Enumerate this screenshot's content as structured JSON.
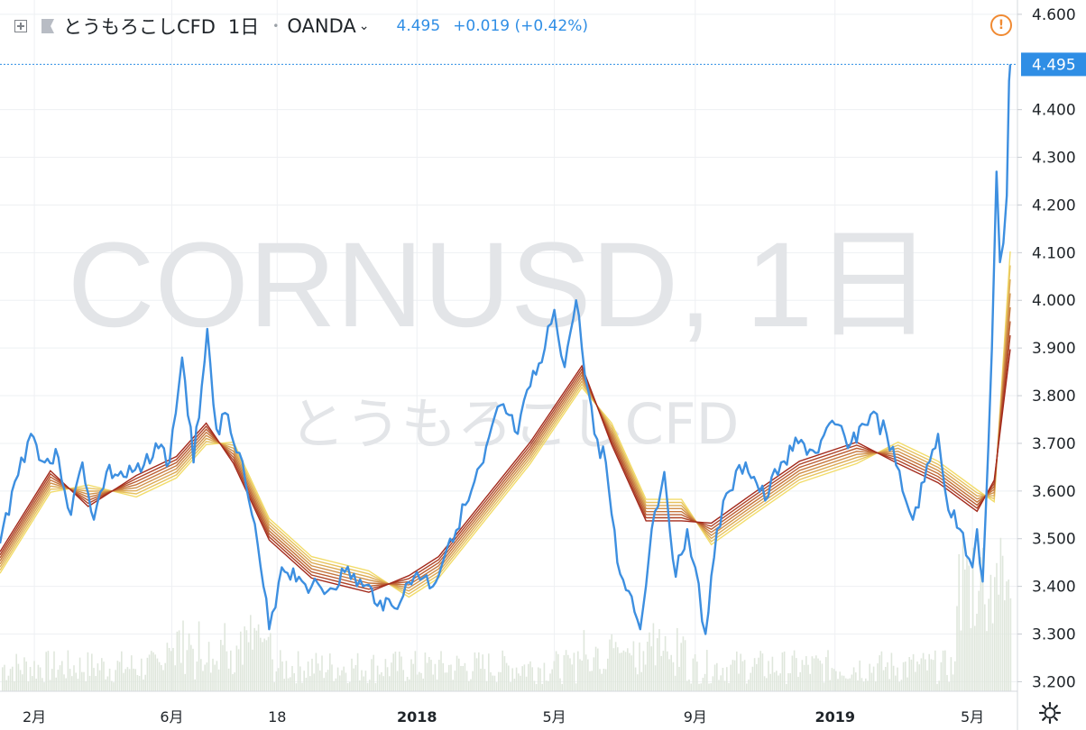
{
  "header": {
    "symbol": "とうもろこしCFD",
    "timeframe": "1日",
    "source": "OANDA",
    "price": "4.495",
    "change": "+0.019 (+0.42%)",
    "add_icon": "plus-square-icon",
    "flag_icon": "flag-icon",
    "dropdown_icon": "chevron-down-icon"
  },
  "watermark": {
    "main": "CORNUSD, 1日",
    "sub": "とうもろこしCFD"
  },
  "alert_icon": "exclamation-circle-icon",
  "settings_icon": "gear-icon",
  "colors": {
    "price_line": "#3d8fe0",
    "last_price_label_bg": "#2f8ee5",
    "ribbon_fast": "#f2dc6a",
    "ribbon_slow": "#a32a1c",
    "volume_bars": "#dfe7dc",
    "alert": "#f08a32"
  },
  "chart_data": {
    "type": "line",
    "y_axis": {
      "ticks": [
        "4.600",
        "4.400",
        "4.300",
        "4.200",
        "4.100",
        "4.000",
        "3.900",
        "3.800",
        "3.700",
        "3.600",
        "3.500",
        "3.400",
        "3.300",
        "3.200"
      ],
      "range": [
        3.18,
        4.63
      ],
      "last_price_label": "4.495"
    },
    "x_axis": {
      "ticks": [
        "2月",
        "6月",
        "18",
        "2018",
        "5月",
        "9月",
        "2019",
        "5月"
      ],
      "bold_ticks": [
        "2018",
        "2019"
      ],
      "range": [
        "2017-01-02",
        "2019-06-03"
      ],
      "tick_dates": [
        "2017-02-01",
        "2017-06-01",
        "2017-09-01",
        "2018-01-01",
        "2018-05-01",
        "2018-09-01",
        "2019-01-01",
        "2019-05-01"
      ]
    },
    "grid": true,
    "price_series": {
      "name": "",
      "points": [
        [
          "2017-01-02",
          3.49
        ],
        [
          "2017-01-15",
          3.62
        ],
        [
          "2017-01-29",
          3.72
        ],
        [
          "2017-02-10",
          3.66
        ],
        [
          "2017-02-22",
          3.67
        ],
        [
          "2017-03-05",
          3.55
        ],
        [
          "2017-03-15",
          3.66
        ],
        [
          "2017-03-25",
          3.54
        ],
        [
          "2017-04-05",
          3.64
        ],
        [
          "2017-04-20",
          3.63
        ],
        [
          "2017-05-05",
          3.64
        ],
        [
          "2017-05-18",
          3.7
        ],
        [
          "2017-05-30",
          3.66
        ],
        [
          "2017-06-10",
          3.88
        ],
        [
          "2017-06-20",
          3.66
        ],
        [
          "2017-07-02",
          3.94
        ],
        [
          "2017-07-10",
          3.73
        ],
        [
          "2017-07-20",
          3.76
        ],
        [
          "2017-07-30",
          3.68
        ],
        [
          "2017-08-10",
          3.55
        ],
        [
          "2017-08-20",
          3.4
        ],
        [
          "2017-08-25",
          3.31
        ],
        [
          "2017-09-05",
          3.44
        ],
        [
          "2017-09-20",
          3.42
        ],
        [
          "2017-10-01",
          3.4
        ],
        [
          "2017-10-15",
          3.39
        ],
        [
          "2017-10-30",
          3.43
        ],
        [
          "2017-11-15",
          3.4
        ],
        [
          "2017-11-30",
          3.37
        ],
        [
          "2017-12-10",
          3.36
        ],
        [
          "2017-12-20",
          3.38
        ],
        [
          "2018-01-01",
          3.43
        ],
        [
          "2018-01-15",
          3.4
        ],
        [
          "2018-01-30",
          3.5
        ],
        [
          "2018-02-15",
          3.58
        ],
        [
          "2018-02-28",
          3.66
        ],
        [
          "2018-03-15",
          3.78
        ],
        [
          "2018-03-30",
          3.72
        ],
        [
          "2018-04-10",
          3.82
        ],
        [
          "2018-04-20",
          3.87
        ],
        [
          "2018-05-01",
          3.98
        ],
        [
          "2018-05-10",
          3.86
        ],
        [
          "2018-05-20",
          4.0
        ],
        [
          "2018-05-25",
          3.9
        ],
        [
          "2018-06-05",
          3.72
        ],
        [
          "2018-06-15",
          3.66
        ],
        [
          "2018-06-25",
          3.45
        ],
        [
          "2018-07-05",
          3.39
        ],
        [
          "2018-07-15",
          3.31
        ],
        [
          "2018-07-25",
          3.52
        ],
        [
          "2018-08-05",
          3.64
        ],
        [
          "2018-08-15",
          3.42
        ],
        [
          "2018-08-25",
          3.52
        ],
        [
          "2018-09-01",
          3.44
        ],
        [
          "2018-09-10",
          3.3
        ],
        [
          "2018-09-20",
          3.52
        ],
        [
          "2018-10-01",
          3.6
        ],
        [
          "2018-10-15",
          3.66
        ],
        [
          "2018-11-01",
          3.58
        ],
        [
          "2018-11-15",
          3.66
        ],
        [
          "2018-11-30",
          3.7
        ],
        [
          "2018-12-15",
          3.68
        ],
        [
          "2019-01-01",
          3.74
        ],
        [
          "2019-01-15",
          3.7
        ],
        [
          "2019-02-01",
          3.76
        ],
        [
          "2019-02-15",
          3.72
        ],
        [
          "2019-03-01",
          3.6
        ],
        [
          "2019-03-10",
          3.54
        ],
        [
          "2019-03-20",
          3.62
        ],
        [
          "2019-04-01",
          3.72
        ],
        [
          "2019-04-10",
          3.56
        ],
        [
          "2019-04-20",
          3.52
        ],
        [
          "2019-05-01",
          3.44
        ],
        [
          "2019-05-05",
          3.52
        ],
        [
          "2019-05-10",
          3.41
        ],
        [
          "2019-05-15",
          3.7
        ],
        [
          "2019-05-18",
          3.9
        ],
        [
          "2019-05-22",
          4.27
        ],
        [
          "2019-05-25",
          4.08
        ],
        [
          "2019-05-28",
          4.12
        ],
        [
          "2019-05-31",
          4.22
        ],
        [
          "2019-06-02",
          4.46
        ],
        [
          "2019-06-03",
          4.495
        ]
      ]
    },
    "ribbon": {
      "description": "",
      "count": 8,
      "spread": 0.045,
      "points": [
        [
          "2017-01-02",
          3.45
        ],
        [
          "2017-02-15",
          3.62
        ],
        [
          "2017-03-20",
          3.59
        ],
        [
          "2017-05-01",
          3.61
        ],
        [
          "2017-06-05",
          3.65
        ],
        [
          "2017-07-01",
          3.72
        ],
        [
          "2017-07-25",
          3.68
        ],
        [
          "2017-08-25",
          3.52
        ],
        [
          "2017-10-01",
          3.44
        ],
        [
          "2017-11-20",
          3.41
        ],
        [
          "2017-12-25",
          3.4
        ],
        [
          "2018-01-20",
          3.44
        ],
        [
          "2018-03-01",
          3.56
        ],
        [
          "2018-04-10",
          3.68
        ],
        [
          "2018-05-25",
          3.84
        ],
        [
          "2018-06-20",
          3.72
        ],
        [
          "2018-07-20",
          3.56
        ],
        [
          "2018-08-20",
          3.56
        ],
        [
          "2018-09-15",
          3.51
        ],
        [
          "2018-10-20",
          3.57
        ],
        [
          "2018-12-01",
          3.64
        ],
        [
          "2019-01-20",
          3.68
        ],
        [
          "2019-02-25",
          3.68
        ],
        [
          "2019-04-01",
          3.64
        ],
        [
          "2019-05-05",
          3.58
        ],
        [
          "2019-05-20",
          3.6
        ],
        [
          "2019-06-03",
          4.0
        ]
      ]
    },
    "volume": {
      "visible": true
    }
  }
}
